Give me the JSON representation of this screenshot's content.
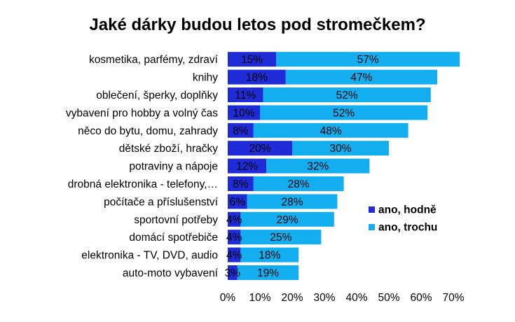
{
  "chart_data": {
    "type": "bar",
    "orientation": "horizontal",
    "stacked": true,
    "title": "Jaké dárky budou letos pod stromečkem?",
    "categories": [
      "kosmetika, parfémy, zdraví",
      "knihy",
      "oblečení, šperky, doplňky",
      "vybavení pro hobby a volný čas",
      "něco do bytu, domu, zahrady",
      "dětské zboží, hračky",
      "potraviny a nápoje",
      "drobná elektronika - telefony,…",
      "počítače a příslušenství",
      "sportovní potřeby",
      "domácí spotřebiče",
      "elektronika - TV, DVD, audio",
      "auto-moto vybavení"
    ],
    "series": [
      {
        "name": "ano, hodně",
        "color": "#1f2bd6",
        "values": [
          15,
          18,
          11,
          10,
          8,
          20,
          12,
          8,
          6,
          4,
          4,
          4,
          3
        ]
      },
      {
        "name": "ano, trochu",
        "color": "#12aef0",
        "values": [
          57,
          47,
          52,
          52,
          48,
          30,
          32,
          28,
          28,
          29,
          25,
          18,
          19
        ]
      }
    ],
    "xlim": [
      0,
      70
    ],
    "xticks": [
      "0%",
      "10%",
      "20%",
      "30%",
      "40%",
      "50%",
      "60%",
      "70%"
    ],
    "xlabel": "",
    "ylabel": "",
    "legend_position": "right"
  }
}
